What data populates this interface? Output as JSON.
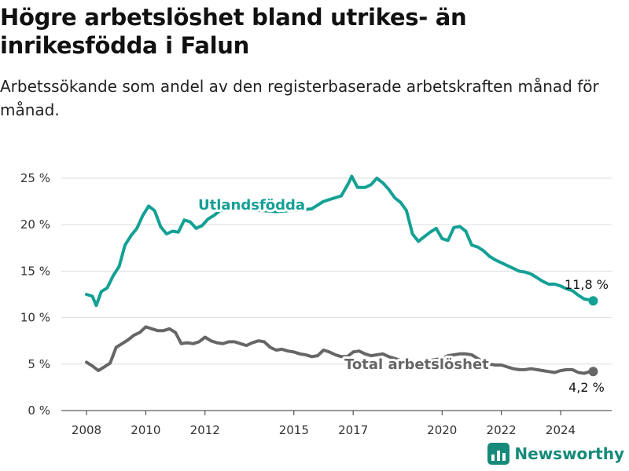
{
  "page": {
    "title": "Högre arbetslöshet bland utrikes- än inrikesfödda i Falun",
    "subtitle": "Arbetssökande som andel av den registerbaserade arbetskraften månad för månad.",
    "brand": "Newsworthy"
  },
  "colors": {
    "utlandsfodda": "#14a095",
    "total": "#666666",
    "grid": "#dddddd",
    "brand": "#168a7a"
  },
  "icons": {
    "brand": "newsworthy-bars-icon"
  },
  "chart_data": {
    "type": "line",
    "ylim": [
      0,
      25
    ],
    "yticks": [
      0,
      5,
      10,
      15,
      20,
      25
    ],
    "ytick_labels": [
      "0 %",
      "5 %",
      "10 %",
      "15 %",
      "20 %",
      "25 %"
    ],
    "xlim": [
      2007.5,
      2025.8
    ],
    "xticks": [
      2008,
      2010,
      2012,
      2015,
      2017,
      2020,
      2022,
      2024
    ],
    "xtick_labels": [
      "2008",
      "2010",
      "2012",
      "2015",
      "2017",
      "2020",
      "2022",
      "2024"
    ],
    "grid": true,
    "series": [
      {
        "name": "Utlandsfödda",
        "end_label": "11,8 %",
        "x": [
          2008.0,
          2008.2,
          2008.33,
          2008.5,
          2008.7,
          2008.9,
          2009.1,
          2009.3,
          2009.5,
          2009.7,
          2009.9,
          2010.1,
          2010.3,
          2010.5,
          2010.7,
          2010.9,
          2011.1,
          2011.3,
          2011.5,
          2011.7,
          2011.9,
          2012.1,
          2012.3,
          2012.5,
          2012.8,
          2013.2,
          2013.6,
          2014.0,
          2014.4,
          2014.8,
          2015.2,
          2015.6,
          2016.0,
          2016.3,
          2016.6,
          2016.85,
          2016.95,
          2017.15,
          2017.4,
          2017.6,
          2017.8,
          2018.0,
          2018.2,
          2018.4,
          2018.6,
          2018.8,
          2019.0,
          2019.2,
          2019.4,
          2019.6,
          2019.8,
          2020.0,
          2020.2,
          2020.4,
          2020.6,
          2020.8,
          2021.0,
          2021.2,
          2021.4,
          2021.6,
          2021.8,
          2022.0,
          2022.2,
          2022.4,
          2022.6,
          2022.8,
          2023.0,
          2023.2,
          2023.4,
          2023.6,
          2023.8,
          2024.0,
          2024.2,
          2024.4,
          2024.6,
          2024.8,
          2025.0,
          2025.1
        ],
        "values": [
          12.5,
          12.3,
          11.3,
          12.8,
          13.2,
          14.5,
          15.5,
          17.8,
          18.8,
          19.6,
          21.0,
          22.0,
          21.5,
          19.8,
          19.0,
          19.3,
          19.2,
          20.5,
          20.3,
          19.6,
          19.9,
          20.6,
          21.0,
          21.5,
          21.7,
          21.9,
          21.6,
          21.5,
          21.4,
          21.5,
          21.6,
          21.7,
          22.5,
          22.8,
          23.1,
          24.5,
          25.2,
          24.0,
          24.0,
          24.3,
          25.0,
          24.5,
          23.8,
          22.9,
          22.4,
          21.5,
          19.0,
          18.2,
          18.7,
          19.2,
          19.6,
          18.5,
          18.3,
          19.7,
          19.8,
          19.3,
          17.8,
          17.6,
          17.2,
          16.6,
          16.2,
          15.9,
          15.6,
          15.3,
          15.0,
          14.9,
          14.7,
          14.3,
          13.9,
          13.6,
          13.6,
          13.4,
          13.1,
          12.9,
          12.4,
          12.0,
          11.9,
          11.8
        ]
      },
      {
        "name": "Total arbetslöshet",
        "end_label": "4,2 %",
        "x": [
          2008.0,
          2008.2,
          2008.4,
          2008.6,
          2008.8,
          2009.0,
          2009.2,
          2009.4,
          2009.6,
          2009.8,
          2010.0,
          2010.2,
          2010.4,
          2010.6,
          2010.8,
          2011.0,
          2011.2,
          2011.4,
          2011.6,
          2011.8,
          2012.0,
          2012.2,
          2012.4,
          2012.6,
          2012.8,
          2013.0,
          2013.2,
          2013.4,
          2013.6,
          2013.8,
          2014.0,
          2014.2,
          2014.4,
          2014.6,
          2014.8,
          2015.0,
          2015.2,
          2015.4,
          2015.6,
          2015.8,
          2016.0,
          2016.2,
          2016.4,
          2016.6,
          2016.8,
          2017.0,
          2017.2,
          2017.4,
          2017.6,
          2017.8,
          2018.0,
          2018.2,
          2018.4,
          2018.6,
          2018.8,
          2019.0,
          2019.2,
          2019.4,
          2019.6,
          2019.8,
          2020.0,
          2020.2,
          2020.4,
          2020.6,
          2020.8,
          2021.0,
          2021.2,
          2021.4,
          2021.6,
          2021.8,
          2022.0,
          2022.2,
          2022.4,
          2022.6,
          2022.8,
          2023.0,
          2023.2,
          2023.4,
          2023.6,
          2023.8,
          2024.0,
          2024.2,
          2024.4,
          2024.6,
          2024.8,
          2025.0,
          2025.1
        ],
        "values": [
          5.2,
          4.8,
          4.3,
          4.7,
          5.1,
          6.8,
          7.2,
          7.6,
          8.1,
          8.4,
          9.0,
          8.8,
          8.6,
          8.6,
          8.8,
          8.4,
          7.2,
          7.3,
          7.2,
          7.4,
          7.9,
          7.5,
          7.3,
          7.2,
          7.4,
          7.4,
          7.2,
          7.0,
          7.3,
          7.5,
          7.4,
          6.8,
          6.5,
          6.6,
          6.4,
          6.3,
          6.1,
          6.0,
          5.8,
          5.9,
          6.5,
          6.3,
          6.0,
          5.8,
          5.8,
          6.3,
          6.4,
          6.1,
          5.9,
          6.0,
          6.1,
          5.8,
          5.6,
          5.4,
          5.3,
          5.2,
          5.2,
          5.3,
          5.4,
          5.5,
          5.6,
          5.9,
          6.0,
          6.1,
          6.1,
          6.0,
          5.6,
          5.2,
          5.0,
          4.9,
          4.9,
          4.7,
          4.5,
          4.4,
          4.4,
          4.5,
          4.4,
          4.3,
          4.2,
          4.1,
          4.3,
          4.4,
          4.4,
          4.1,
          4.0,
          4.2,
          4.2
        ]
      }
    ],
    "annotations": [
      {
        "text": "Utlandsfödda",
        "series": "Utlandsfödda"
      },
      {
        "text": "Total arbetslöshet",
        "series": "Total arbetslöshet"
      }
    ]
  }
}
